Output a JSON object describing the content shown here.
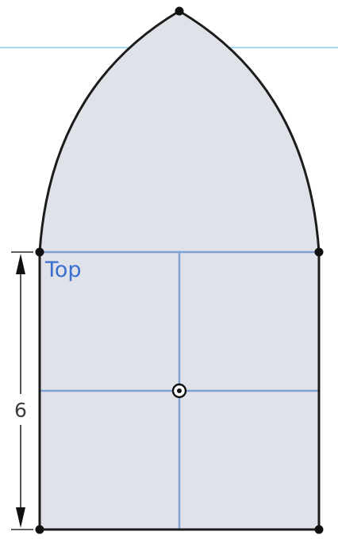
{
  "viewport": {
    "plane_label": "Top",
    "dimension_value": "6"
  },
  "colors": {
    "background": "#ffffff",
    "region_fill": "#dfe2e8",
    "sketch_line": "#1c1c1c",
    "plane_line": "#7ea2d8",
    "horizon_line": "#a9d8f2",
    "plane_label": "#3a6fd0",
    "dimension": "#2a2a2a"
  },
  "icons": {
    "origin": "origin-icon",
    "vertex": "sketch-point-icon",
    "arrow": "dimension-arrow-icon"
  }
}
